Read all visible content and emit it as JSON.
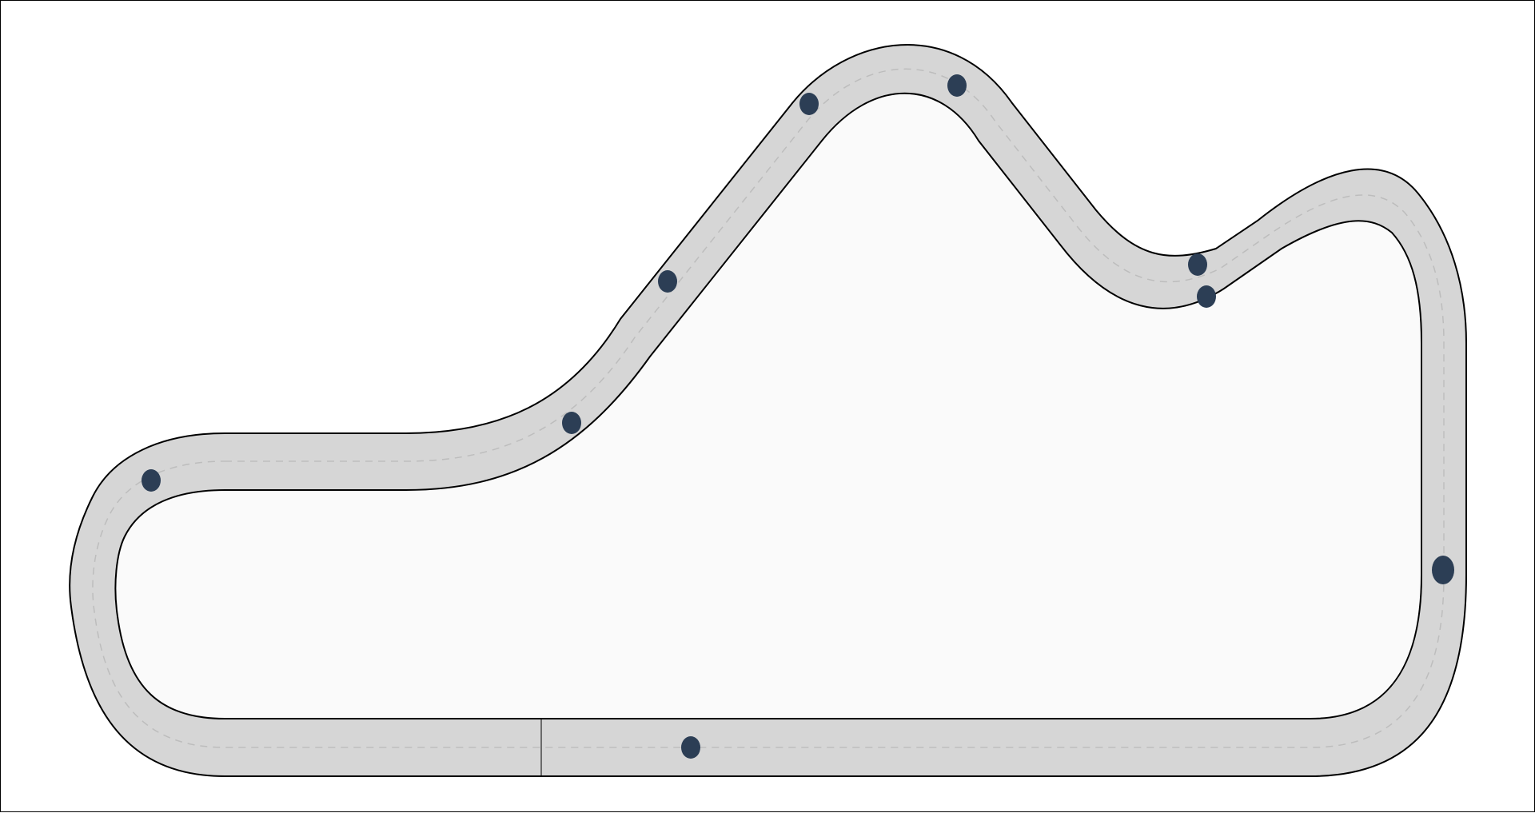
{
  "colors": {
    "background": "#ffffff",
    "infield": "#fafafa",
    "track_surface": "#d6d6d6",
    "track_edge": "#000000",
    "center_line": "#bdbdbd",
    "car": "#2c3e55"
  },
  "track": {
    "center_line_style": "dashed",
    "has_start_finish_line": true
  },
  "cars": [
    {
      "id": "car-1"
    },
    {
      "id": "car-2"
    },
    {
      "id": "car-3"
    },
    {
      "id": "car-4"
    },
    {
      "id": "car-5"
    },
    {
      "id": "car-6"
    },
    {
      "id": "car-7"
    },
    {
      "id": "car-8"
    },
    {
      "id": "car-9"
    },
    {
      "id": "car-10"
    }
  ]
}
